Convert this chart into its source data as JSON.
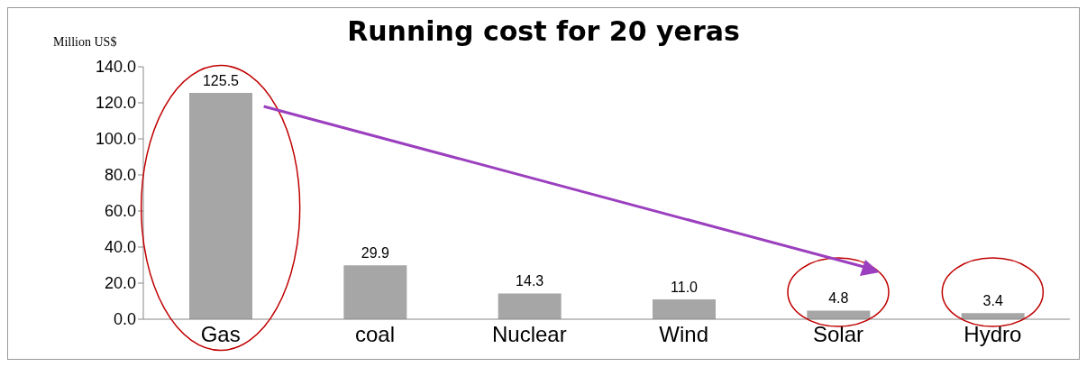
{
  "chart_data": {
    "type": "bar",
    "title": "Running cost for 20 yeras",
    "ylabel": "Million US$",
    "categories": [
      "Gas",
      "coal",
      "Nuclear",
      "Wind",
      "Solar",
      "Hydro"
    ],
    "values": [
      125.5,
      29.9,
      14.3,
      11.0,
      4.8,
      3.4
    ],
    "value_labels": [
      "125.5",
      "29.9",
      "14.3",
      "11.0",
      "4.8",
      "3.4"
    ],
    "color": "#a6a6a6",
    "ylim": [
      0,
      140
    ],
    "yticks": [
      {
        "value": 0,
        "label": "0.0"
      },
      {
        "value": 20,
        "label": "20.0"
      },
      {
        "value": 40,
        "label": "40.0"
      },
      {
        "value": 60,
        "label": "60.0"
      },
      {
        "value": 80,
        "label": "80.0"
      },
      {
        "value": 100,
        "label": "100.0"
      },
      {
        "value": 120,
        "label": "120.0"
      },
      {
        "value": 140,
        "label": "140.0"
      }
    ],
    "grid": false,
    "legend": false
  }
}
